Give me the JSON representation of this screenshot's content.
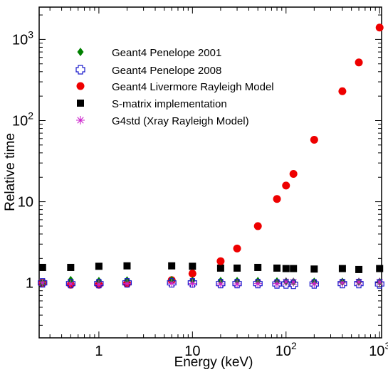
{
  "chart_data": {
    "type": "scatter",
    "title": "",
    "xlabel": "Energy (keV)",
    "ylabel": "Relative time",
    "x_scale": "log",
    "y_scale": "log",
    "xlim": [
      0.23,
      1050
    ],
    "ylim": [
      0.21,
      2500
    ],
    "grid": false,
    "legend_position": "top-left",
    "x_ticks": [
      {
        "value": 1,
        "label": "1"
      },
      {
        "value": 10,
        "label": "10"
      },
      {
        "value": 100,
        "label": "10",
        "sup": "2"
      },
      {
        "value": 1000,
        "label": "10",
        "sup": "3"
      }
    ],
    "y_ticks": [
      {
        "value": 1,
        "label": "1"
      },
      {
        "value": 10,
        "label": "10"
      },
      {
        "value": 100,
        "label": "10",
        "sup": "2"
      },
      {
        "value": 1000,
        "label": "10",
        "sup": "3"
      }
    ],
    "series": [
      {
        "name": "Geant4 Penelope 2001",
        "marker": "diamond",
        "color": "#008000",
        "points": [
          [
            0.25,
            1.0
          ],
          [
            0.5,
            1.08
          ],
          [
            1,
            1.05
          ],
          [
            2,
            1.07
          ],
          [
            6,
            1.08
          ],
          [
            10,
            1.06
          ],
          [
            20,
            1.05
          ],
          [
            30,
            1.05
          ],
          [
            50,
            1.05
          ],
          [
            80,
            1.04
          ],
          [
            100,
            1.04
          ],
          [
            120,
            1.03
          ],
          [
            200,
            1.03
          ],
          [
            400,
            1.03
          ],
          [
            600,
            1.03
          ],
          [
            1000,
            1.03
          ]
        ]
      },
      {
        "name": "Geant4 Penelope 2008",
        "marker": "plus-square",
        "color": "#1a1acc",
        "points": [
          [
            0.25,
            1.0
          ],
          [
            0.5,
            0.98
          ],
          [
            1,
            0.98
          ],
          [
            2,
            1.0
          ],
          [
            6,
            1.0
          ],
          [
            10,
            1.0
          ],
          [
            20,
            0.98
          ],
          [
            30,
            0.98
          ],
          [
            50,
            0.98
          ],
          [
            80,
            0.97
          ],
          [
            100,
            0.97
          ],
          [
            120,
            0.96
          ],
          [
            200,
            0.97
          ],
          [
            400,
            0.98
          ],
          [
            600,
            0.98
          ],
          [
            1000,
            0.97
          ]
        ]
      },
      {
        "name": "Geant4 Livermore Rayleigh Model",
        "marker": "circle",
        "color": "#ee0000",
        "points": [
          [
            0.25,
            1.0
          ],
          [
            0.5,
            0.95
          ],
          [
            1,
            0.95
          ],
          [
            2,
            0.98
          ],
          [
            6,
            1.08
          ],
          [
            10,
            1.3
          ],
          [
            20,
            1.85
          ],
          [
            30,
            2.65
          ],
          [
            50,
            5.0
          ],
          [
            80,
            10.8
          ],
          [
            100,
            15.8
          ],
          [
            120,
            22.0
          ],
          [
            200,
            58.0
          ],
          [
            400,
            230.0
          ],
          [
            600,
            520.0
          ],
          [
            1000,
            1400.0
          ]
        ]
      },
      {
        "name": "S-matrix implementation",
        "marker": "square",
        "color": "#000000",
        "points": [
          [
            0.25,
            1.55
          ],
          [
            0.5,
            1.55
          ],
          [
            1,
            1.6
          ],
          [
            2,
            1.62
          ],
          [
            6,
            1.62
          ],
          [
            10,
            1.6
          ],
          [
            20,
            1.52
          ],
          [
            30,
            1.52
          ],
          [
            50,
            1.55
          ],
          [
            80,
            1.52
          ],
          [
            100,
            1.5
          ],
          [
            120,
            1.5
          ],
          [
            200,
            1.48
          ],
          [
            400,
            1.5
          ],
          [
            600,
            1.46
          ],
          [
            1000,
            1.5
          ]
        ]
      },
      {
        "name": "G4std (Xray Rayleigh Model)",
        "marker": "asterisk",
        "color": "#cc22cc",
        "points": [
          [
            0.25,
            1.0
          ],
          [
            0.5,
            0.97
          ],
          [
            1,
            0.96
          ],
          [
            2,
            0.98
          ],
          [
            6,
            0.99
          ],
          [
            10,
            0.98
          ],
          [
            20,
            0.97
          ],
          [
            30,
            0.97
          ],
          [
            50,
            0.98
          ],
          [
            80,
            0.98
          ],
          [
            100,
            1.03
          ],
          [
            120,
            1.02
          ],
          [
            200,
            0.98
          ],
          [
            400,
            1.0
          ],
          [
            600,
            1.02
          ],
          [
            1000,
            1.02
          ]
        ]
      }
    ]
  }
}
